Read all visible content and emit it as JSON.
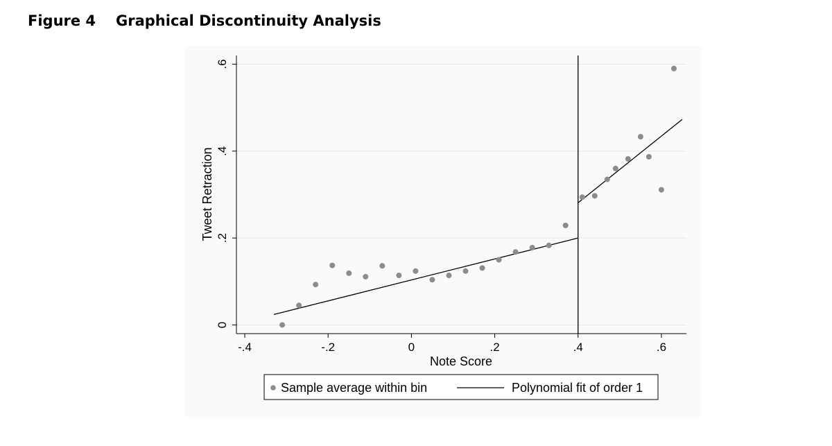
{
  "figure": {
    "label": "Figure 4",
    "title": "Graphical Discontinuity Analysis"
  },
  "chart_data": {
    "type": "scatter",
    "xlabel": "Note Score",
    "ylabel": "Tweet Retraction",
    "xlim": [
      -0.42,
      0.66
    ],
    "ylim": [
      -0.02,
      0.62
    ],
    "x_ticks": [
      {
        "value": -0.4,
        "label": "-.4"
      },
      {
        "value": -0.2,
        "label": "-.2"
      },
      {
        "value": 0,
        "label": "0"
      },
      {
        "value": 0.2,
        "label": ".2"
      },
      {
        "value": 0.4,
        "label": ".4"
      },
      {
        "value": 0.6,
        "label": ".6"
      }
    ],
    "y_ticks": [
      {
        "value": 0,
        "label": "0"
      },
      {
        "value": 0.2,
        "label": ".2"
      },
      {
        "value": 0.4,
        "label": ".4"
      },
      {
        "value": 0.6,
        "label": ".6"
      }
    ],
    "grid": true,
    "cutoff": 0.4,
    "series": [
      {
        "name": "Sample average within bin",
        "type": "scatter",
        "color": "#8c8c8c",
        "x": [
          -0.31,
          -0.27,
          -0.23,
          -0.19,
          -0.15,
          -0.11,
          -0.07,
          -0.03,
          0.01,
          0.05,
          0.09,
          0.13,
          0.17,
          0.21,
          0.25,
          0.29,
          0.33,
          0.37,
          0.41,
          0.44,
          0.47,
          0.49,
          0.52,
          0.55,
          0.57,
          0.6,
          0.63
        ],
        "y": [
          0.0,
          0.045,
          0.093,
          0.137,
          0.119,
          0.111,
          0.136,
          0.114,
          0.124,
          0.104,
          0.114,
          0.124,
          0.131,
          0.15,
          0.168,
          0.178,
          0.183,
          0.229,
          0.294,
          0.297,
          0.335,
          0.36,
          0.382,
          0.433,
          0.387,
          0.311,
          0.59
        ]
      },
      {
        "name": "Polynomial fit of order 1",
        "type": "line",
        "color": "#000000",
        "segments": [
          {
            "x": [
              -0.33,
              0.4
            ],
            "y": [
              0.024,
              0.2
            ]
          },
          {
            "x": [
              0.4,
              0.65
            ],
            "y": [
              0.281,
              0.473
            ]
          }
        ]
      }
    ],
    "legend": {
      "position": "bottom",
      "entries": [
        "Sample average within bin",
        "Polynomial fit of order 1"
      ]
    }
  }
}
